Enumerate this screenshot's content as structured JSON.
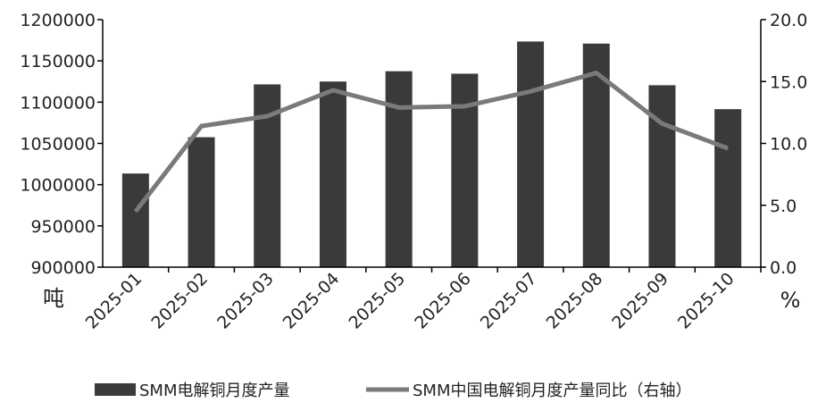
{
  "chart_data": {
    "type": "bar+line",
    "categories": [
      "2025-01",
      "2025-02",
      "2025-03",
      "2025-04",
      "2025-05",
      "2025-06",
      "2025-07",
      "2025-08",
      "2025-09",
      "2025-10"
    ],
    "series": [
      {
        "name": "SMM电解铜月度产量",
        "type": "bar",
        "axis": "left",
        "color": "#3a3a3a",
        "values": [
          1013500,
          1057500,
          1121500,
          1125000,
          1137500,
          1134500,
          1173500,
          1171000,
          1120500,
          1091500
        ]
      },
      {
        "name": "SMM中国电解铜月度产量同比（右轴）",
        "type": "line",
        "axis": "right",
        "color": "#7a7a7a",
        "values": [
          4.5,
          11.4,
          12.2,
          14.3,
          12.9,
          13.0,
          14.2,
          15.7,
          11.6,
          9.6
        ]
      }
    ],
    "ylabel": "吨",
    "y2label": "%",
    "ylim": [
      900000,
      1200000
    ],
    "yticks": [
      "900000",
      "950000",
      "1000000",
      "1050000",
      "1100000",
      "1150000",
      "1200000"
    ],
    "y2lim": [
      0,
      20
    ],
    "y2ticks": [
      "0.0",
      "5.0",
      "10.0",
      "15.0",
      "20.0"
    ],
    "grid": false,
    "legend_position": "bottom"
  }
}
